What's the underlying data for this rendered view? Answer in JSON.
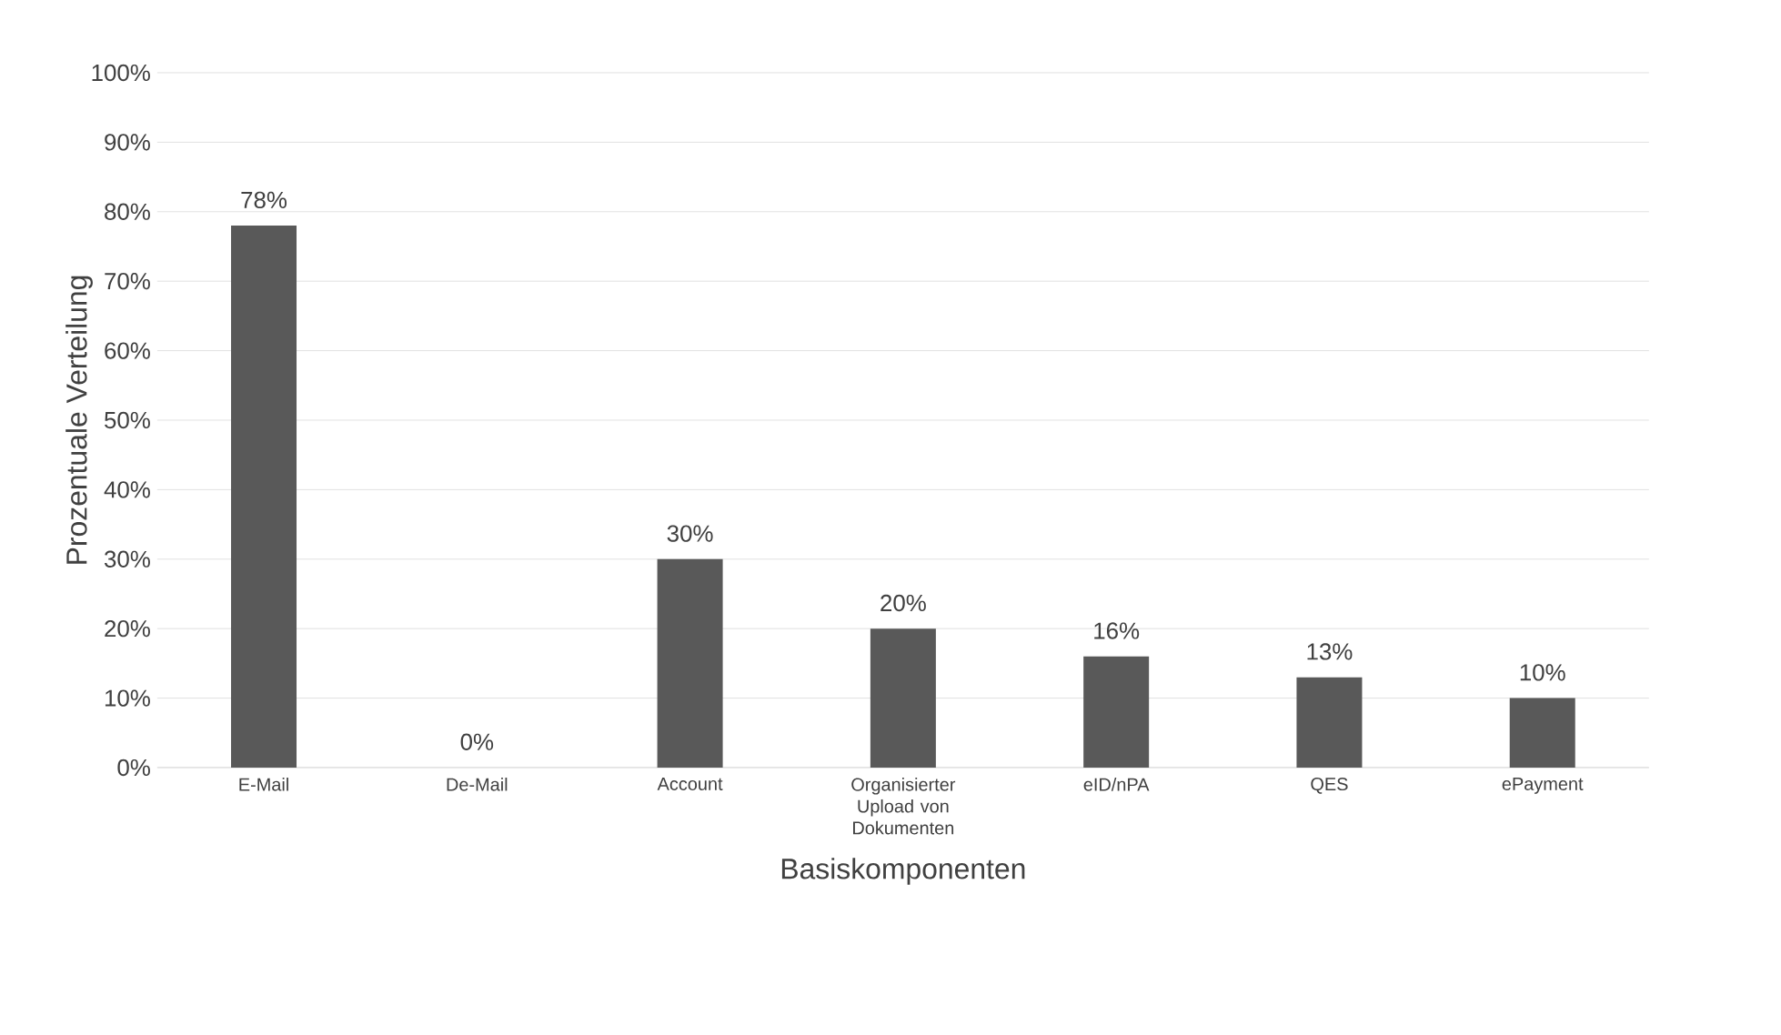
{
  "chart_data": {
    "type": "bar",
    "xlabel": "Basiskomponenten",
    "ylabel": "Prozentuale Verteilung",
    "categories": [
      "E-Mail",
      "De-Mail",
      "Account",
      "Organisierter Upload von Dokumenten",
      "eID/nPA",
      "QES",
      "ePayment"
    ],
    "values": [
      78,
      0,
      30,
      20,
      16,
      13,
      10
    ],
    "value_labels": [
      "78%",
      "0%",
      "30%",
      "20%",
      "16%",
      "13%",
      "10%"
    ],
    "color": "#595959",
    "ylim": [
      0,
      100
    ],
    "yticks": [
      {
        "value": 0,
        "label": "0%"
      },
      {
        "value": 10,
        "label": "10%"
      },
      {
        "value": 20,
        "label": "20%"
      },
      {
        "value": 30,
        "label": "30%"
      },
      {
        "value": 40,
        "label": "40%"
      },
      {
        "value": 50,
        "label": "50%"
      },
      {
        "value": 60,
        "label": "60%"
      },
      {
        "value": 70,
        "label": "70%"
      },
      {
        "value": 80,
        "label": "80%"
      },
      {
        "value": 90,
        "label": "90%"
      },
      {
        "value": 100,
        "label": "100%"
      }
    ],
    "grid": "y"
  }
}
